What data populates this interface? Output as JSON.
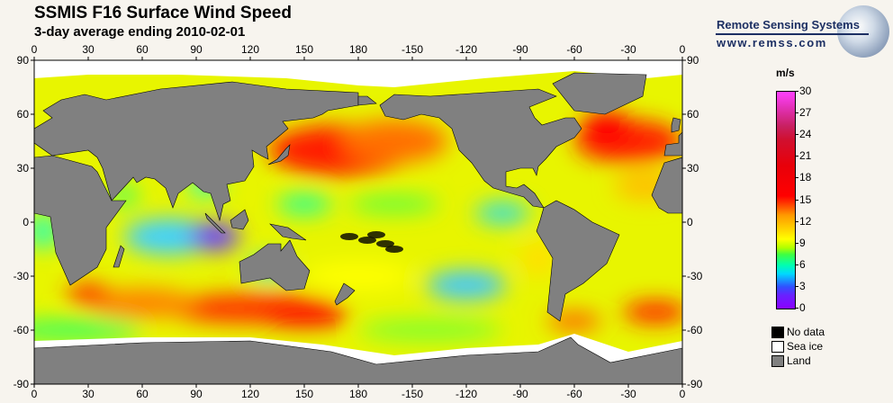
{
  "header": {
    "title": "SSMIS F16 Surface Wind Speed",
    "subtitle": "3-day average ending 2010-02-01"
  },
  "logo": {
    "name": "Remote Sensing Systems",
    "url": "www.remss.com"
  },
  "axes": {
    "lon_labels": [
      "0",
      "30",
      "60",
      "90",
      "120",
      "150",
      "180",
      "-150",
      "-120",
      "-90",
      "-60",
      "-30",
      "0"
    ],
    "lat_labels": [
      "90",
      "60",
      "30",
      "0",
      "-30",
      "-60",
      "-90"
    ]
  },
  "colorbar": {
    "unit": "m/s",
    "ticks": [
      "30",
      "27",
      "24",
      "21",
      "18",
      "15",
      "12",
      "9",
      "6",
      "3",
      "0"
    ],
    "min": 0,
    "max": 30
  },
  "legend": [
    {
      "label": "No data",
      "color": "#000000"
    },
    {
      "label": "Sea ice",
      "color": "#ffffff"
    },
    {
      "label": "Land",
      "color": "#808080"
    }
  ],
  "colors": {
    "land": "#808080",
    "ice": "#ffffff",
    "nodata": "#000000",
    "logo": "#1c2f63"
  }
}
